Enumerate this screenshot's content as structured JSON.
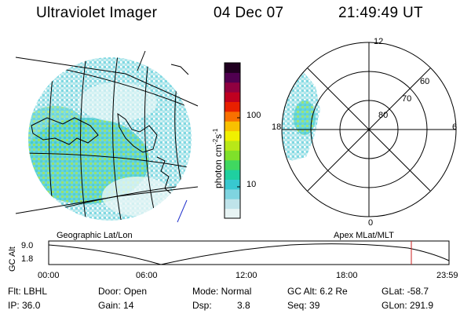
{
  "header": {
    "instrument": "Ultraviolet Imager",
    "date": "04 Dec 07",
    "time": "21:49:49 UT"
  },
  "colorbar": {
    "unit_label": "photon cm",
    "unit_exp1": "-2",
    "unit_s": "s",
    "unit_exp2": "-1",
    "ticks": [
      "100",
      "10"
    ],
    "colors": [
      "#e8f4f4",
      "#bfe3ea",
      "#7fd4e0",
      "#38c8d0",
      "#1fd0a0",
      "#40d860",
      "#7fe02a",
      "#b8e818",
      "#f0f000",
      "#f8c000",
      "#f87000",
      "#e82000",
      "#c00020",
      "#900040",
      "#500050",
      "#200020"
    ]
  },
  "polar_plot": {
    "mlt_labels": [
      "12",
      "6",
      "18",
      "0"
    ],
    "lat_labels": [
      "60",
      "70",
      "80"
    ]
  },
  "panels": {
    "left_caption": "Geographic Lat/Lon",
    "right_caption": "Apex MLat/MLT"
  },
  "altitude_plot": {
    "ylabel": "GC Alt",
    "yticks": [
      "9.0",
      "1.8"
    ],
    "xticks": [
      "00:00",
      "06:00",
      "12:00",
      "18:00",
      "23:59"
    ]
  },
  "info": {
    "filter": "Flt: LBHL",
    "door": "Door: Open",
    "mode": "Mode: Normal",
    "gc_alt": "GC Alt: 6.2 Re",
    "glat": "GLat: -58.7",
    "ip": "IP: 36.0",
    "gain": "Gain: 14",
    "dsp_label": "Dsp:",
    "dsp_value": "3.8",
    "seq": "Seq: 39",
    "glon": "GLon: 291.9"
  },
  "colors": {
    "aurora_base": "#cdeef0",
    "aurora_mid": "#5fd3dc",
    "aurora_green": "#8ee05a",
    "orbit_marker": "#cc2222",
    "coast_accent": "#2233cc"
  }
}
